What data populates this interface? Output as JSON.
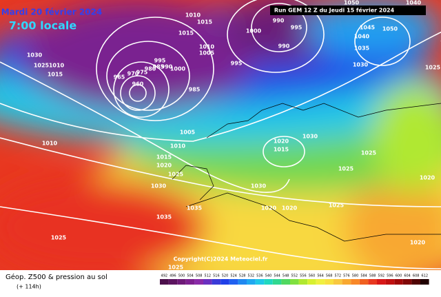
{
  "header": {
    "date": "Mardi 20 février 2024",
    "time": "7:00 locale",
    "run": "Run GEM 12 Z du Jeudi 15 février 2024"
  },
  "copyright": "Copyright(C)2024 Meteociel.fr",
  "footer": {
    "title": "Géop. Z500 & pression au sol",
    "lead": "(+ 114h)"
  },
  "legend": {
    "values": [
      492,
      496,
      500,
      504,
      508,
      512,
      516,
      520,
      524,
      528,
      532,
      536,
      540,
      544,
      548,
      552,
      556,
      560,
      564,
      568,
      572,
      576,
      580,
      584,
      588,
      592,
      596,
      600,
      604,
      608,
      612
    ],
    "colors": [
      "#4b0f4b",
      "#5c1460",
      "#6e1a78",
      "#7d2090",
      "#8a2aa8",
      "#6a30c0",
      "#3a3ad8",
      "#2040e8",
      "#2060f0",
      "#2088f0",
      "#20a8f0",
      "#20c8e8",
      "#20d8c0",
      "#30d890",
      "#50d860",
      "#80e040",
      "#b0e830",
      "#d8f030",
      "#f0f040",
      "#f8e040",
      "#f8c840",
      "#f8a830",
      "#f88828",
      "#f06020",
      "#e83820",
      "#d81818",
      "#c01010",
      "#a00808",
      "#800808",
      "#500404",
      "#200000"
    ]
  },
  "isobar_labels": [
    "1010",
    "1015",
    "1015",
    "1010",
    "1005",
    "1000",
    "990",
    "995",
    "990",
    "995",
    "1030",
    "1025",
    "1010",
    "1015",
    "965",
    "970",
    "975",
    "980",
    "985",
    "990",
    "995",
    "1000",
    "985",
    "960",
    "1005",
    "1010",
    "1010",
    "1015",
    "1025",
    "1020",
    "1030",
    "1035",
    "1035",
    "1030",
    "1020",
    "1020",
    "1025",
    "1020",
    "1025",
    "1025",
    "1020",
    "1015",
    "1030",
    "1025",
    "1025",
    "1040",
    "1050",
    "1045",
    "1050",
    "1040",
    "1035",
    "1030",
    "1025",
    "1020"
  ]
}
